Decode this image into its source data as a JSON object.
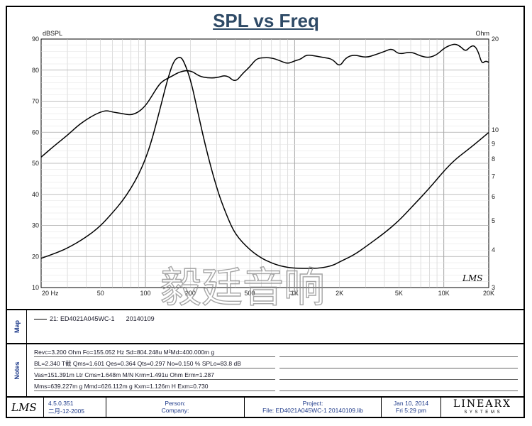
{
  "title": "SPL vs Freq",
  "chart_data": {
    "type": "line",
    "title": "SPL vs Freq",
    "xscale": "log",
    "xlim": [
      20,
      20000
    ],
    "ylabel_left": "dBSPL",
    "ylim_left": [
      10,
      90
    ],
    "ylabel_right": "Ohm",
    "ylim_right": [
      3,
      20
    ],
    "x_ticks": [
      "20 Hz",
      "50",
      "100",
      "200",
      "500",
      "1K",
      "2K",
      "5K",
      "10K",
      "20K"
    ],
    "y_left_ticks": [
      "10",
      "20",
      "30",
      "40",
      "50",
      "60",
      "70",
      "80",
      "90"
    ],
    "y_right_ticks": [
      "3",
      "4",
      "5",
      "6",
      "7",
      "8",
      "9",
      "10",
      "20"
    ],
    "grid": true,
    "series": [
      {
        "name": "SPL",
        "axis": "left",
        "x": [
          20,
          25,
          30,
          35,
          40,
          45,
          50,
          55,
          60,
          70,
          80,
          90,
          100,
          110,
          120,
          130,
          150,
          170,
          200,
          230,
          260,
          300,
          350,
          400,
          450,
          500,
          550,
          600,
          700,
          800,
          900,
          1000,
          1100,
          1200,
          1400,
          1600,
          1800,
          2000,
          2200,
          2500,
          3000,
          3500,
          4000,
          4500,
          5000,
          6000,
          7000,
          8000,
          9000,
          10000,
          11000,
          12000,
          13000,
          14000,
          15000,
          16000,
          17000,
          18000,
          19000,
          20000
        ],
        "values": [
          52,
          56,
          59,
          62,
          64,
          65.5,
          66.5,
          67,
          66.5,
          66,
          65.5,
          66.5,
          68.5,
          71.5,
          74.5,
          76.5,
          78,
          79.5,
          80,
          78,
          77.5,
          77.5,
          78.5,
          76,
          79,
          81,
          83.5,
          84,
          84,
          83,
          82,
          83,
          83.5,
          85,
          84.5,
          84,
          83.5,
          81,
          84,
          85,
          84,
          85,
          86,
          87,
          85,
          86,
          84.5,
          84,
          85,
          87,
          88,
          88.5,
          87.5,
          86,
          87.5,
          88,
          86,
          82,
          83,
          82.5
        ]
      },
      {
        "name": "Impedance",
        "axis": "right",
        "x": [
          20,
          25,
          30,
          40,
          50,
          60,
          70,
          80,
          90,
          100,
          110,
          120,
          130,
          140,
          155,
          170,
          180,
          200,
          220,
          250,
          300,
          350,
          400,
          500,
          600,
          700,
          800,
          900,
          1000,
          1200,
          1500,
          1800,
          2000,
          2500,
          3000,
          4000,
          5000,
          6000,
          8000,
          10000,
          12000,
          15000,
          20000
        ],
        "values": [
          3.75,
          3.9,
          4.05,
          4.4,
          4.8,
          5.3,
          5.8,
          6.4,
          7.1,
          8.0,
          9.2,
          10.8,
          12.6,
          14.6,
          17.0,
          17.5,
          17.0,
          14.8,
          12.0,
          9.0,
          6.4,
          5.2,
          4.5,
          4.0,
          3.75,
          3.62,
          3.54,
          3.5,
          3.48,
          3.47,
          3.48,
          3.55,
          3.65,
          3.85,
          4.1,
          4.55,
          5.0,
          5.5,
          6.4,
          7.3,
          8.0,
          8.7,
          9.8
        ]
      }
    ]
  },
  "watermark": "毅廷音响",
  "logo_plot": "LMS",
  "map": {
    "label": "Map",
    "entry": "21: ED4021A045WC-1",
    "date": "20140109"
  },
  "notes": {
    "label": "Notes",
    "lines": [
      "Revc=3.200 Ohm  Fo=155.052 Hz  Sd=804.248u M²Md=400.000m g",
      "BL=2.340 T截  Qms=1.601  Qes=0.364  Qts=0.297  No=0.150 %  SPLo=83.8 dB",
      "Vas=151.391m Ltr  Cms=1.648m M/N  Krm=1.491u Ohm  Erm=1.287",
      "Mms=639.227m g  Mmd=626.112m g  Kxm=1.126m H  Exm=0.730"
    ]
  },
  "footer": {
    "logo": "LMS",
    "version": "4.5.0.351",
    "version_date": "二月-12-2005",
    "person_label": "Person:",
    "company_label": "Company:",
    "project_label": "Project:",
    "file_label": "File: ED4021A045WC-1  20140109.lib",
    "date": "Jan 10, 2014",
    "time": "Fri  5:29 pm",
    "brand": "LINEARX",
    "brand_sub": "S Y S T E M S"
  }
}
